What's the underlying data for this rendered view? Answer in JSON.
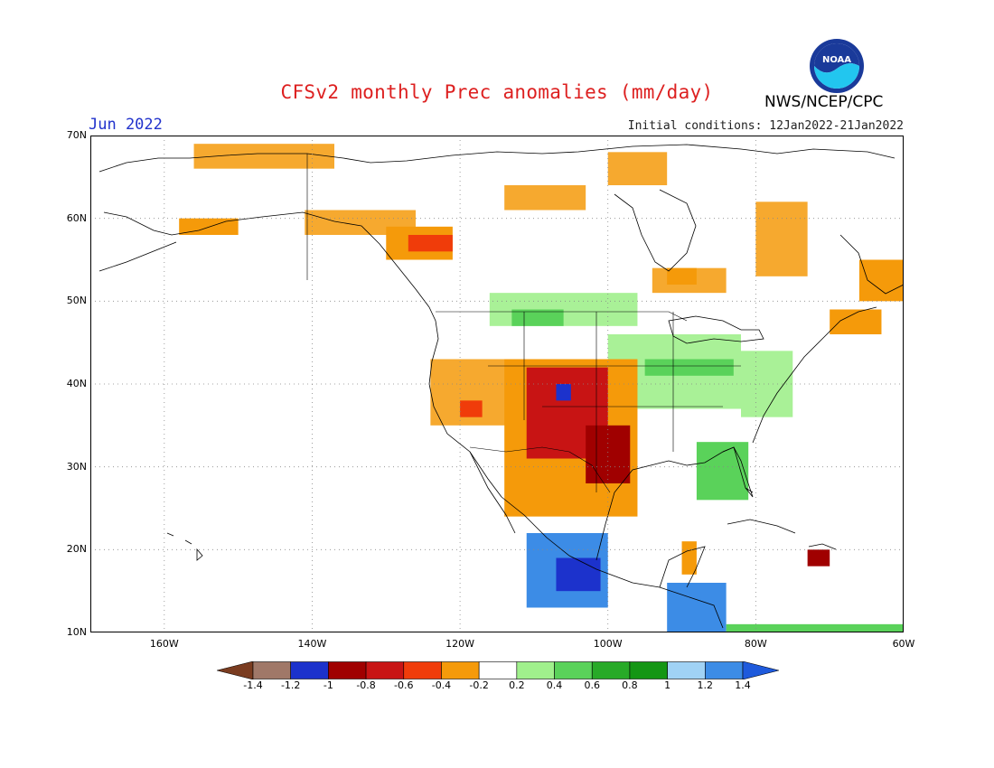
{
  "header": {
    "title": "CFSv2 monthly Prec anomalies (mm/day)",
    "month": "Jun 2022",
    "initial_conditions": "Initial conditions: 12Jan2022-21Jan2022",
    "agency": "NWS/NCEP/CPC",
    "logo_text": "NOAA"
  },
  "map": {
    "projection": "latlon",
    "lon_range": [
      -170,
      -60
    ],
    "lat_range": [
      10,
      70
    ],
    "lat_labels": [
      "70N",
      "60N",
      "50N",
      "40N",
      "30N",
      "20N",
      "10N"
    ],
    "lon_labels": [
      "160W",
      "140W",
      "120W",
      "100W",
      "80W",
      "60W"
    ],
    "gridlines": true,
    "anomaly_regions": [
      {
        "category": "dry_0.2",
        "lon": [
          -156,
          -137
        ],
        "lat": [
          66,
          69
        ]
      },
      {
        "category": "dry_0.2",
        "lon": [
          -141,
          -126
        ],
        "lat": [
          58,
          61
        ]
      },
      {
        "category": "dry_0.4",
        "lon": [
          -130,
          -121
        ],
        "lat": [
          55,
          59
        ]
      },
      {
        "category": "dry_0.6",
        "lon": [
          -127,
          -121
        ],
        "lat": [
          56,
          58
        ]
      },
      {
        "category": "dry_0.4",
        "lon": [
          -158,
          -150
        ],
        "lat": [
          58,
          60
        ]
      },
      {
        "category": "dry_0.2",
        "lon": [
          -100,
          -92
        ],
        "lat": [
          64,
          68
        ]
      },
      {
        "category": "dry_0.2",
        "lon": [
          -114,
          -103
        ],
        "lat": [
          61,
          64
        ]
      },
      {
        "category": "dry_0.2",
        "lon": [
          -94,
          -84
        ],
        "lat": [
          51,
          54
        ]
      },
      {
        "category": "dry_0.4",
        "lon": [
          -92,
          -88
        ],
        "lat": [
          52,
          54
        ]
      },
      {
        "category": "dry_0.2",
        "lon": [
          -80,
          -73
        ],
        "lat": [
          53,
          62
        ]
      },
      {
        "category": "dry_0.4",
        "lon": [
          -66,
          -60
        ],
        "lat": [
          50,
          55
        ]
      },
      {
        "category": "dry_0.4",
        "lon": [
          -70,
          -63
        ],
        "lat": [
          46,
          49
        ]
      },
      {
        "category": "wet_0.2",
        "lon": [
          -116,
          -96
        ],
        "lat": [
          47,
          51
        ]
      },
      {
        "category": "wet_0.4",
        "lon": [
          -113,
          -106
        ],
        "lat": [
          47,
          49
        ]
      },
      {
        "category": "wet_0.2",
        "lon": [
          -100,
          -82
        ],
        "lat": [
          37,
          46
        ]
      },
      {
        "category": "wet_0.4",
        "lon": [
          -95,
          -83
        ],
        "lat": [
          41,
          43
        ]
      },
      {
        "category": "wet_0.2",
        "lon": [
          -82,
          -75
        ],
        "lat": [
          36,
          44
        ]
      },
      {
        "category": "wet_0.4",
        "lon": [
          -88,
          -81
        ],
        "lat": [
          26,
          33
        ]
      },
      {
        "category": "dry_0.2",
        "lon": [
          -124,
          -112
        ],
        "lat": [
          35,
          43
        ]
      },
      {
        "category": "dry_0.6",
        "lon": [
          -120,
          -117
        ],
        "lat": [
          36,
          38
        ]
      },
      {
        "category": "dry_0.4",
        "lon": [
          -114,
          -96
        ],
        "lat": [
          24,
          43
        ]
      },
      {
        "category": "dry_0.8",
        "lon": [
          -111,
          -100
        ],
        "lat": [
          31,
          42
        ]
      },
      {
        "category": "dry_1.0",
        "lon": [
          -103,
          -97
        ],
        "lat": [
          28,
          35
        ]
      },
      {
        "category": "wet_1.2",
        "lon": [
          -107,
          -105
        ],
        "lat": [
          38,
          40
        ]
      },
      {
        "category": "wet_1.0",
        "lon": [
          -111,
          -100
        ],
        "lat": [
          13,
          22
        ]
      },
      {
        "category": "wet_1.2",
        "lon": [
          -107,
          -101
        ],
        "lat": [
          15,
          19
        ]
      },
      {
        "category": "wet_1.0",
        "lon": [
          -92,
          -84
        ],
        "lat": [
          10,
          16
        ]
      },
      {
        "category": "dry_0.4",
        "lon": [
          -90,
          -88
        ],
        "lat": [
          17,
          21
        ]
      },
      {
        "category": "dry_1.0",
        "lon": [
          -73,
          -70
        ],
        "lat": [
          18,
          20
        ]
      },
      {
        "category": "wet_0.4",
        "lon": [
          -84,
          -60
        ],
        "lat": [
          10,
          11
        ]
      }
    ]
  },
  "colorbar": {
    "labels": [
      "-1.4",
      "-1.2",
      "-1",
      "-0.8",
      "-0.6",
      "-0.4",
      "-0.2",
      "0.2",
      "0.4",
      "0.6",
      "0.8",
      "1",
      "1.2",
      "1.4"
    ],
    "colors": [
      "#7a3c20",
      "#a07868",
      "#1c32cc",
      "#a00000",
      "#c81414",
      "#f03c0a",
      "#f59a0a",
      "#ffffff",
      "#a0f08c",
      "#5ad25a",
      "#28aa28",
      "#149614",
      "#a0d2f5",
      "#3c8ce6",
      "#1e5adc"
    ],
    "units": "mm/day"
  }
}
